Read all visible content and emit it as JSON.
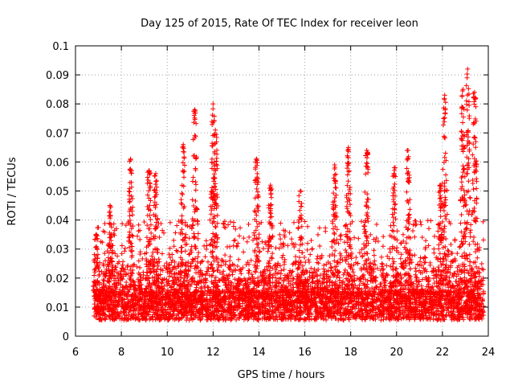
{
  "chart_data": {
    "type": "scatter",
    "title": "Day 125 of 2015, Rate Of TEC Index for receiver leon",
    "xlabel": "GPS time / hours",
    "ylabel": "ROTI / TECUs",
    "xlim": [
      6,
      24
    ],
    "ylim": [
      0,
      0.1
    ],
    "xticks": [
      "6",
      "8",
      "10",
      "12",
      "14",
      "16",
      "18",
      "20",
      "22",
      "24"
    ],
    "yticks": [
      "0",
      "0.01",
      "0.02",
      "0.03",
      "0.04",
      "0.05",
      "0.06",
      "0.07",
      "0.08",
      "0.09",
      "0.1"
    ],
    "grid": true,
    "marker": "+",
    "color": "#ff0000",
    "x_range_of_data": [
      6.8,
      23.8
    ],
    "baseline_level": 0.01,
    "peaks": [
      {
        "x": 6.9,
        "y": 0.035
      },
      {
        "x": 7.5,
        "y": 0.045
      },
      {
        "x": 8.4,
        "y": 0.061
      },
      {
        "x": 9.2,
        "y": 0.057
      },
      {
        "x": 9.5,
        "y": 0.056
      },
      {
        "x": 10.7,
        "y": 0.066
      },
      {
        "x": 11.2,
        "y": 0.078
      },
      {
        "x": 12.0,
        "y": 0.08
      },
      {
        "x": 12.1,
        "y": 0.071
      },
      {
        "x": 13.9,
        "y": 0.061
      },
      {
        "x": 14.5,
        "y": 0.052
      },
      {
        "x": 15.8,
        "y": 0.05
      },
      {
        "x": 17.3,
        "y": 0.059
      },
      {
        "x": 17.9,
        "y": 0.065
      },
      {
        "x": 18.7,
        "y": 0.064
      },
      {
        "x": 19.9,
        "y": 0.058
      },
      {
        "x": 20.5,
        "y": 0.064
      },
      {
        "x": 21.9,
        "y": 0.052
      },
      {
        "x": 22.1,
        "y": 0.083
      },
      {
        "x": 22.9,
        "y": 0.085
      },
      {
        "x": 23.1,
        "y": 0.092
      },
      {
        "x": 23.4,
        "y": 0.084
      }
    ]
  }
}
